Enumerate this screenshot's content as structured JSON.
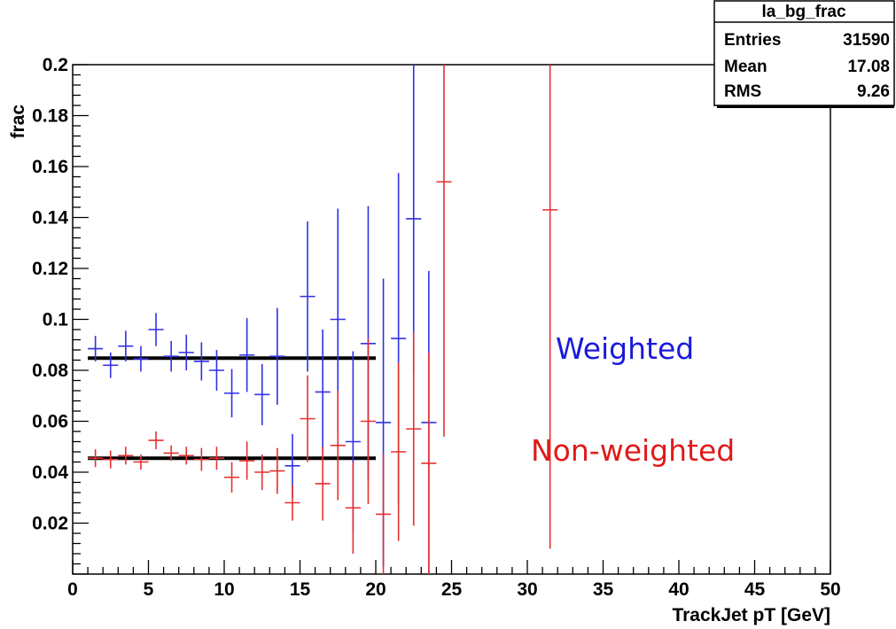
{
  "chart_data": {
    "type": "scatter",
    "xlabel": "TrackJet pT [GeV]",
    "ylabel": "frac",
    "xlim": [
      0,
      50
    ],
    "ylim": [
      0,
      0.2
    ],
    "x_ticks": [
      0,
      5,
      10,
      15,
      20,
      25,
      30,
      35,
      40,
      45,
      50
    ],
    "x_tick_labels": [
      "0",
      "5",
      "10",
      "15",
      "20",
      "25",
      "30",
      "35",
      "40",
      "45",
      "50"
    ],
    "y_ticks": [
      0.02,
      0.04,
      0.06,
      0.08,
      0.1,
      0.12,
      0.14,
      0.16,
      0.18,
      0.2
    ],
    "y_tick_labels": [
      "0.02",
      "0.04",
      "0.06",
      "0.08",
      "0.1",
      "0.12",
      "0.14",
      "0.16",
      "0.18",
      "0.2"
    ],
    "grid": false,
    "stats_box": {
      "title": "la_bg_frac",
      "rows": [
        {
          "label": "Entries",
          "value": "31590"
        },
        {
          "label": "Mean",
          "value": "17.08"
        },
        {
          "label": "RMS",
          "value": "9.26"
        }
      ]
    },
    "annotations": [
      {
        "text": "Weighted",
        "color": "#1a1adb"
      },
      {
        "text": "Non-weighted",
        "color": "#e01a1a"
      }
    ],
    "series": [
      {
        "color": "#3030e6",
        "points": [
          {
            "x": 1.5,
            "y": 0.0885,
            "err": 0.005
          },
          {
            "x": 2.5,
            "y": 0.082,
            "err": 0.005
          },
          {
            "x": 3.5,
            "y": 0.0895,
            "err": 0.006
          },
          {
            "x": 4.5,
            "y": 0.0845,
            "err": 0.005
          },
          {
            "x": 5.5,
            "y": 0.096,
            "err": 0.0065
          },
          {
            "x": 6.5,
            "y": 0.0855,
            "err": 0.006
          },
          {
            "x": 7.5,
            "y": 0.087,
            "err": 0.007
          },
          {
            "x": 8.5,
            "y": 0.0835,
            "err": 0.0075
          },
          {
            "x": 9.5,
            "y": 0.08,
            "err": 0.008
          },
          {
            "x": 10.5,
            "y": 0.071,
            "err": 0.0095
          },
          {
            "x": 11.5,
            "y": 0.086,
            "err": 0.0145
          },
          {
            "x": 12.5,
            "y": 0.0705,
            "err": 0.012
          },
          {
            "x": 13.5,
            "y": 0.0855,
            "err": 0.019
          },
          {
            "x": 14.5,
            "y": 0.0425,
            "err": 0.0125
          },
          {
            "x": 15.5,
            "y": 0.109,
            "err": 0.0295
          },
          {
            "x": 16.5,
            "y": 0.0715,
            "err": 0.0245
          },
          {
            "x": 17.5,
            "y": 0.1,
            "err": 0.0435
          },
          {
            "x": 18.5,
            "y": 0.052,
            "err": 0.0355
          },
          {
            "x": 19.5,
            "y": 0.0905,
            "err": 0.054
          },
          {
            "x": 20.5,
            "y": 0.0595,
            "err": 0.0565
          },
          {
            "x": 21.5,
            "y": 0.0925,
            "err": 0.065
          },
          {
            "x": 22.5,
            "y": 0.1395,
            "err": 0.0605
          },
          {
            "x": 23.5,
            "y": 0.0595,
            "err": 0.0595
          }
        ]
      },
      {
        "color": "#e63030",
        "points": [
          {
            "x": 1.5,
            "y": 0.0455,
            "err": 0.0035
          },
          {
            "x": 2.5,
            "y": 0.045,
            "err": 0.0035
          },
          {
            "x": 3.5,
            "y": 0.0465,
            "err": 0.0035
          },
          {
            "x": 4.5,
            "y": 0.044,
            "err": 0.003
          },
          {
            "x": 5.5,
            "y": 0.0525,
            "err": 0.0035
          },
          {
            "x": 6.5,
            "y": 0.0475,
            "err": 0.003
          },
          {
            "x": 7.5,
            "y": 0.0465,
            "err": 0.0035
          },
          {
            "x": 8.5,
            "y": 0.045,
            "err": 0.0045
          },
          {
            "x": 9.5,
            "y": 0.0455,
            "err": 0.0045
          },
          {
            "x": 10.5,
            "y": 0.038,
            "err": 0.006
          },
          {
            "x": 11.5,
            "y": 0.0445,
            "err": 0.0075
          },
          {
            "x": 12.5,
            "y": 0.04,
            "err": 0.007
          },
          {
            "x": 13.5,
            "y": 0.0405,
            "err": 0.009
          },
          {
            "x": 14.5,
            "y": 0.028,
            "err": 0.007
          },
          {
            "x": 15.5,
            "y": 0.061,
            "err": 0.017
          },
          {
            "x": 16.5,
            "y": 0.0355,
            "err": 0.0145
          },
          {
            "x": 17.5,
            "y": 0.0505,
            "err": 0.0215
          },
          {
            "x": 18.5,
            "y": 0.026,
            "err": 0.018
          },
          {
            "x": 19.5,
            "y": 0.06,
            "err": 0.0325
          },
          {
            "x": 20.5,
            "y": 0.0235,
            "err": 0.0235
          },
          {
            "x": 21.5,
            "y": 0.048,
            "err": 0.035
          },
          {
            "x": 22.5,
            "y": 0.057,
            "err": 0.038
          },
          {
            "x": 23.5,
            "y": 0.0435,
            "err": 0.0435
          },
          {
            "x": 24.5,
            "y": 0.154,
            "err": 0.1
          },
          {
            "x": 31.5,
            "y": 0.143,
            "err": 0.133
          }
        ]
      }
    ],
    "fit_lines": [
      {
        "x_start": 1,
        "x_end": 20,
        "y": 0.0848,
        "color": "#000000"
      },
      {
        "x_start": 1,
        "x_end": 20,
        "y": 0.0455,
        "color": "#000000"
      }
    ]
  }
}
